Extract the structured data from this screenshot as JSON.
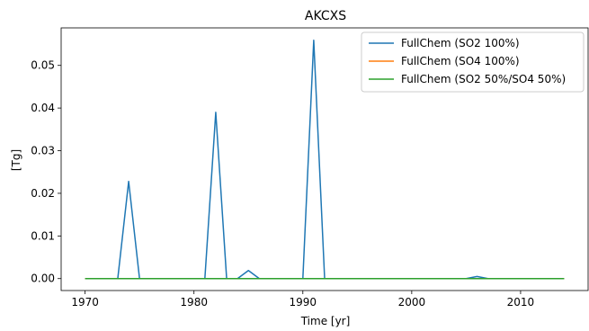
{
  "chart_data": {
    "type": "line",
    "title": "AKCXS",
    "xlabel": "Time [yr]",
    "ylabel": "[Tg]",
    "xlim": [
      1967.8,
      2016.2
    ],
    "ylim": [
      -0.0028,
      0.0588
    ],
    "xticks": [
      1970,
      1980,
      1990,
      2000,
      2010
    ],
    "yticks": [
      0.0,
      0.01,
      0.02,
      0.03,
      0.04,
      0.05
    ],
    "ytick_labels": [
      "0.00",
      "0.01",
      "0.02",
      "0.03",
      "0.04",
      "0.05"
    ],
    "grid": false,
    "legend_position": "top-right",
    "x": [
      1970,
      1971,
      1972,
      1973,
      1974,
      1975,
      1976,
      1977,
      1978,
      1979,
      1980,
      1981,
      1982,
      1983,
      1984,
      1985,
      1986,
      1987,
      1988,
      1989,
      1990,
      1991,
      1992,
      1993,
      1994,
      1995,
      1996,
      1997,
      1998,
      1999,
      2000,
      2001,
      2002,
      2003,
      2004,
      2005,
      2006,
      2007,
      2008,
      2009,
      2010,
      2011,
      2012,
      2013,
      2014
    ],
    "series": [
      {
        "name": "FullChem (SO2 100%)",
        "color": "#1f77b4",
        "values": [
          0,
          0,
          0,
          0,
          0.0228,
          0,
          0,
          0,
          0,
          0,
          0,
          0,
          0.039,
          0,
          0,
          0.0019,
          0,
          0,
          0,
          0,
          0,
          0.0559,
          0,
          0,
          0,
          0,
          0,
          0,
          0,
          0,
          0,
          0,
          0,
          0,
          0,
          0,
          0.0005,
          0,
          0,
          0,
          0,
          0,
          0,
          0,
          0
        ]
      },
      {
        "name": "FullChem (SO4 100%)",
        "color": "#ff7f0e",
        "values": [
          0,
          0,
          0,
          0,
          0,
          0,
          0,
          0,
          0,
          0,
          0,
          0,
          0,
          0,
          0,
          0,
          0,
          0,
          0,
          0,
          0,
          0,
          0,
          0,
          0,
          0,
          0,
          0,
          0,
          0,
          0,
          0,
          0,
          0,
          0,
          0,
          0,
          0,
          0,
          0,
          0,
          0,
          0,
          0,
          0
        ]
      },
      {
        "name": "FullChem (SO2 50%/SO4 50%)",
        "color": "#2ca02c",
        "values": [
          0,
          0,
          0,
          0,
          0,
          0,
          0,
          0,
          0,
          0,
          0,
          0,
          0,
          0,
          0,
          0,
          0,
          0,
          0,
          0,
          0,
          0,
          0,
          0,
          0,
          0,
          0,
          0,
          0,
          0,
          0,
          0,
          0,
          0,
          0,
          0,
          0,
          0,
          0,
          0,
          0,
          0,
          0,
          0,
          0
        ]
      }
    ]
  }
}
